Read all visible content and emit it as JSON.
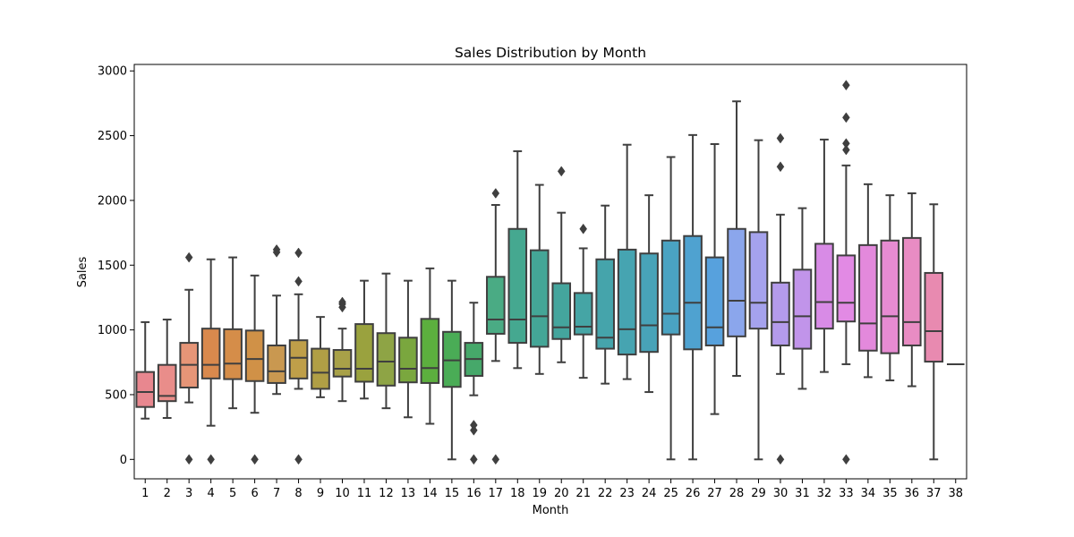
{
  "chart_data": {
    "type": "box",
    "title": "Sales Distribution by Month",
    "xlabel": "Month",
    "ylabel": "Sales",
    "ylim": [
      -150,
      3050
    ],
    "yticks": [
      0,
      500,
      1000,
      1500,
      2000,
      2500,
      3000
    ],
    "grid": false,
    "legend": "none",
    "categories": [
      "1",
      "2",
      "3",
      "4",
      "5",
      "6",
      "7",
      "8",
      "9",
      "10",
      "11",
      "12",
      "13",
      "14",
      "15",
      "16",
      "17",
      "18",
      "19",
      "20",
      "21",
      "22",
      "23",
      "24",
      "25",
      "26",
      "27",
      "28",
      "29",
      "30",
      "31",
      "32",
      "33",
      "34",
      "35",
      "36",
      "37",
      "38"
    ],
    "boxes": [
      {
        "month": "1",
        "color": "#e8878f",
        "whislo": 315,
        "q1": 405,
        "med": 520,
        "q3": 675,
        "whishi": 1060,
        "fliers": []
      },
      {
        "month": "2",
        "color": "#e98d8a",
        "whislo": 320,
        "q1": 450,
        "med": 490,
        "q3": 730,
        "whishi": 1080,
        "fliers": []
      },
      {
        "month": "3",
        "color": "#e69577",
        "whislo": 440,
        "q1": 555,
        "med": 730,
        "q3": 900,
        "whishi": 1310,
        "fliers": [
          0,
          1560
        ]
      },
      {
        "month": "4",
        "color": "#d9894d",
        "whislo": 260,
        "q1": 625,
        "med": 730,
        "q3": 1010,
        "whishi": 1545,
        "fliers": [
          0
        ]
      },
      {
        "month": "5",
        "color": "#d58d49",
        "whislo": 395,
        "q1": 620,
        "med": 740,
        "q3": 1005,
        "whishi": 1560,
        "fliers": []
      },
      {
        "month": "6",
        "color": "#d09147",
        "whislo": 360,
        "q1": 605,
        "med": 775,
        "q3": 995,
        "whishi": 1420,
        "fliers": [
          0
        ]
      },
      {
        "month": "7",
        "color": "#c99850",
        "whislo": 505,
        "q1": 590,
        "med": 680,
        "q3": 880,
        "whishi": 1265,
        "fliers": [
          1600,
          1620
        ]
      },
      {
        "month": "8",
        "color": "#bf9f49",
        "whislo": 545,
        "q1": 625,
        "med": 785,
        "q3": 920,
        "whishi": 1275,
        "fliers": [
          0,
          1375,
          1595
        ]
      },
      {
        "month": "9",
        "color": "#b09f45",
        "whislo": 480,
        "q1": 545,
        "med": 670,
        "q3": 855,
        "whishi": 1100,
        "fliers": []
      },
      {
        "month": "10",
        "color": "#a8a148",
        "whislo": 450,
        "q1": 640,
        "med": 700,
        "q3": 845,
        "whishi": 1010,
        "fliers": [
          1175,
          1200,
          1215
        ]
      },
      {
        "month": "11",
        "color": "#9aa23e",
        "whislo": 470,
        "q1": 600,
        "med": 700,
        "q3": 1045,
        "whishi": 1380,
        "fliers": []
      },
      {
        "month": "12",
        "color": "#8ea445",
        "whislo": 395,
        "q1": 570,
        "med": 755,
        "q3": 975,
        "whishi": 1435,
        "fliers": []
      },
      {
        "month": "13",
        "color": "#7aa73e",
        "whislo": 325,
        "q1": 595,
        "med": 700,
        "q3": 940,
        "whishi": 1380,
        "fliers": []
      },
      {
        "month": "14",
        "color": "#5caf3e",
        "whislo": 275,
        "q1": 590,
        "med": 705,
        "q3": 1085,
        "whishi": 1475,
        "fliers": []
      },
      {
        "month": "15",
        "color": "#4aac56",
        "whislo": 0,
        "q1": 560,
        "med": 765,
        "q3": 985,
        "whishi": 1380,
        "fliers": []
      },
      {
        "month": "16",
        "color": "#46a86a",
        "whislo": 495,
        "q1": 645,
        "med": 775,
        "q3": 900,
        "whishi": 1210,
        "fliers": [
          0,
          225,
          265
        ]
      },
      {
        "month": "17",
        "color": "#4aab84",
        "whislo": 760,
        "q1": 970,
        "med": 1080,
        "q3": 1410,
        "whishi": 1965,
        "fliers": [
          0,
          2055
        ]
      },
      {
        "month": "18",
        "color": "#45a890",
        "whislo": 705,
        "q1": 900,
        "med": 1080,
        "q3": 1780,
        "whishi": 2380,
        "fliers": []
      },
      {
        "month": "19",
        "color": "#44a697",
        "whislo": 660,
        "q1": 870,
        "med": 1105,
        "q3": 1615,
        "whishi": 2120,
        "fliers": []
      },
      {
        "month": "20",
        "color": "#44a59d",
        "whislo": 750,
        "q1": 930,
        "med": 1020,
        "q3": 1360,
        "whishi": 1905,
        "fliers": [
          2225
        ]
      },
      {
        "month": "21",
        "color": "#45a5a5",
        "whislo": 630,
        "q1": 965,
        "med": 1025,
        "q3": 1285,
        "whishi": 1630,
        "fliers": [
          1780
        ]
      },
      {
        "month": "22",
        "color": "#45a4ab",
        "whislo": 585,
        "q1": 855,
        "med": 940,
        "q3": 1545,
        "whishi": 1960,
        "fliers": []
      },
      {
        "month": "23",
        "color": "#46a4b1",
        "whislo": 620,
        "q1": 810,
        "med": 1005,
        "q3": 1620,
        "whishi": 2430,
        "fliers": []
      },
      {
        "month": "24",
        "color": "#48a3b8",
        "whislo": 520,
        "q1": 830,
        "med": 1035,
        "q3": 1590,
        "whishi": 2040,
        "fliers": []
      },
      {
        "month": "25",
        "color": "#4aa3c2",
        "whislo": 0,
        "q1": 965,
        "med": 1125,
        "q3": 1690,
        "whishi": 2335,
        "fliers": []
      },
      {
        "month": "26",
        "color": "#4fa2d0",
        "whislo": 0,
        "q1": 850,
        "med": 1210,
        "q3": 1725,
        "whishi": 2505,
        "fliers": []
      },
      {
        "month": "27",
        "color": "#57a1dd",
        "whislo": 350,
        "q1": 880,
        "med": 1020,
        "q3": 1560,
        "whishi": 2435,
        "fliers": []
      },
      {
        "month": "28",
        "color": "#8ba6ec",
        "whislo": 645,
        "q1": 950,
        "med": 1225,
        "q3": 1780,
        "whishi": 2765,
        "fliers": []
      },
      {
        "month": "29",
        "color": "#a5a2ed",
        "whislo": 0,
        "q1": 1010,
        "med": 1210,
        "q3": 1755,
        "whishi": 2465,
        "fliers": []
      },
      {
        "month": "30",
        "color": "#b49bec",
        "whislo": 660,
        "q1": 880,
        "med": 1060,
        "q3": 1365,
        "whishi": 1890,
        "fliers": [
          0,
          2260,
          2480
        ]
      },
      {
        "month": "31",
        "color": "#c194ea",
        "whislo": 545,
        "q1": 855,
        "med": 1105,
        "q3": 1465,
        "whishi": 1940,
        "fliers": []
      },
      {
        "month": "32",
        "color": "#d88be6",
        "whislo": 675,
        "q1": 1010,
        "med": 1215,
        "q3": 1665,
        "whishi": 2470,
        "fliers": []
      },
      {
        "month": "33",
        "color": "#e28ae4",
        "whislo": 735,
        "q1": 1065,
        "med": 1210,
        "q3": 1575,
        "whishi": 2270,
        "fliers": [
          0,
          2390,
          2440,
          2640,
          2890
        ]
      },
      {
        "month": "34",
        "color": "#e389dc",
        "whislo": 635,
        "q1": 840,
        "med": 1050,
        "q3": 1655,
        "whishi": 2125,
        "fliers": []
      },
      {
        "month": "35",
        "color": "#e68bd2",
        "whislo": 610,
        "q1": 820,
        "med": 1105,
        "q3": 1690,
        "whishi": 2040,
        "fliers": []
      },
      {
        "month": "36",
        "color": "#e88cc3",
        "whislo": 565,
        "q1": 880,
        "med": 1060,
        "q3": 1710,
        "whishi": 2055,
        "fliers": []
      },
      {
        "month": "37",
        "color": "#e88ab0",
        "whislo": 0,
        "q1": 755,
        "med": 990,
        "q3": 1440,
        "whishi": 1970,
        "fliers": []
      },
      {
        "month": "38",
        "color": "#e88ca0",
        "whislo": 735,
        "q1": 735,
        "med": 735,
        "q3": 735,
        "whishi": 735,
        "fliers": []
      }
    ]
  }
}
